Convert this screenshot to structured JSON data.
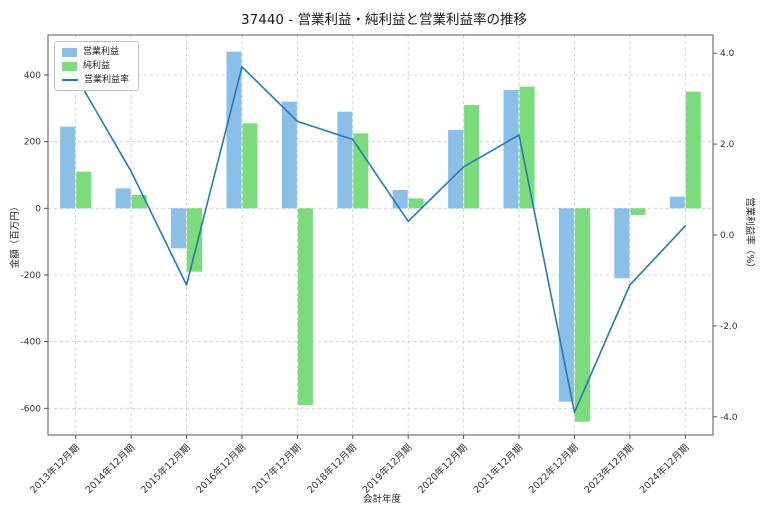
{
  "chart_data": {
    "type": "bar+line",
    "title": "37440 - 営業利益・純利益と営業利益率の推移",
    "xlabel": "会計年度",
    "ylabel_left": "金額（百万円）",
    "ylabel_right": "営業利益率（%）",
    "categories": [
      "2013年12月期",
      "2014年12月期",
      "2015年12月期",
      "2016年12月期",
      "2017年12月期",
      "2018年12月期",
      "2019年12月期",
      "2020年12月期",
      "2021年12月期",
      "2022年12月期",
      "2023年12月期",
      "2024年12月期"
    ],
    "series": [
      {
        "name": "営業利益",
        "type": "bar",
        "axis": "left",
        "color": "#8abfe8",
        "values": [
          245,
          60,
          -120,
          470,
          320,
          290,
          55,
          235,
          355,
          -580,
          -210,
          35
        ]
      },
      {
        "name": "純利益",
        "type": "bar",
        "axis": "left",
        "color": "#7adc7a",
        "values": [
          110,
          40,
          -190,
          255,
          -590,
          225,
          30,
          310,
          365,
          -640,
          -20,
          350
        ]
      },
      {
        "name": "営業利益率",
        "type": "line",
        "axis": "right",
        "color": "#2878b4",
        "values": [
          3.5,
          1.4,
          -1.1,
          3.7,
          2.5,
          2.1,
          0.3,
          1.5,
          2.2,
          -3.9,
          -1.1,
          0.2
        ]
      }
    ],
    "y_left": {
      "min": -680,
      "max": 520,
      "ticks": [
        400,
        200,
        0,
        -200,
        -400,
        -600
      ],
      "tick_labels": [
        "400",
        "200",
        "0",
        "-200",
        "-400",
        "-600"
      ]
    },
    "y_right": {
      "min": -4.4,
      "max": 4.4,
      "ticks": [
        4.0,
        2.0,
        0.0,
        -2.0,
        -4.0
      ],
      "tick_labels": [
        "4.0",
        "2.0",
        "0.0",
        "-2.0",
        "-4.0"
      ]
    },
    "grid": true,
    "grid_style": "dashed",
    "legend_position": "upper-left",
    "colors": {
      "grid": "#c9c9c9",
      "spine": "#555555",
      "tick_text": "#333333"
    }
  }
}
